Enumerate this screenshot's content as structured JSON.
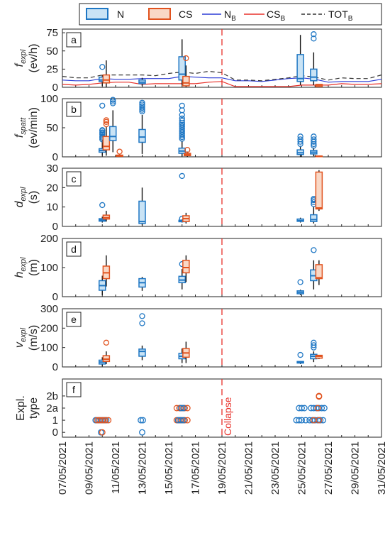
{
  "colors": {
    "N": "#1f77c4",
    "N_fill": "#c9e3f5",
    "CS": "#e1531f",
    "CS_fill": "#f9d8c6",
    "NB": "#2b3bd6",
    "CSB": "#e8312a",
    "TOT": "#333333",
    "collapse": "#e8312a"
  },
  "legend": {
    "N": "N",
    "CS": "CS",
    "NB": "N",
    "NB_sub": "B",
    "CSB": "CS",
    "CSB_sub": "B",
    "TOT": "TOT",
    "TOT_sub": "B"
  },
  "x_axis": {
    "start_day": 7,
    "end_day": 31,
    "tick_labels": [
      "07/05/2021",
      "09/05/2021",
      "11/05/2021",
      "13/05/2021",
      "15/05/2021",
      "17/05/2021",
      "19/05/2021",
      "21/05/2021",
      "23/05/2021",
      "25/05/2021",
      "27/05/2021",
      "29/05/2021",
      "31/05/2021"
    ]
  },
  "collapse": {
    "day": 19,
    "label": "Collapse"
  },
  "chart_data": [
    {
      "panel": "a",
      "type": "box",
      "ylabel": "f",
      "ylabel_sub": "expl",
      "unit": "(ev/h)",
      "ylim": [
        0,
        80
      ],
      "yticks": [
        "0",
        "25",
        "50",
        "75"
      ],
      "ytick_values": [
        0,
        25,
        50,
        75
      ],
      "boxes": [
        {
          "series": "N",
          "day": 10.0,
          "q1": 8,
          "med": 10,
          "q3": 14,
          "lo": 2,
          "hi": 17,
          "out": [
            28
          ]
        },
        {
          "series": "CS",
          "day": 10.3,
          "q1": 6,
          "med": 10,
          "q3": 17,
          "lo": 0,
          "hi": 37,
          "out": []
        },
        {
          "series": "N",
          "day": 13.0,
          "q1": 5,
          "med": 7,
          "q3": 10,
          "lo": 2,
          "hi": 13,
          "out": []
        },
        {
          "series": "N",
          "day": 16.0,
          "q1": 10,
          "med": 18,
          "q3": 42,
          "lo": 3,
          "hi": 66,
          "out": []
        },
        {
          "series": "CS",
          "day": 16.3,
          "q1": 2,
          "med": 6,
          "q3": 15,
          "lo": 0,
          "hi": 30,
          "out": [
            40
          ]
        },
        {
          "series": "N",
          "day": 24.9,
          "q1": 8,
          "med": 12,
          "q3": 45,
          "lo": 3,
          "hi": 72,
          "out": []
        },
        {
          "series": "N",
          "day": 25.9,
          "q1": 9,
          "med": 14,
          "q3": 25,
          "lo": 3,
          "hi": 48,
          "out": [
            67,
            73
          ]
        },
        {
          "series": "CS",
          "day": 26.3,
          "q1": 1,
          "med": 3,
          "q3": 4,
          "lo": 0,
          "hi": 4,
          "out": []
        }
      ],
      "lines": [
        {
          "series": "NB",
          "x": [
            7,
            8,
            9,
            10,
            11,
            12,
            13,
            14,
            15,
            16,
            17,
            18,
            19,
            20,
            21,
            22,
            23,
            24,
            25,
            26,
            27,
            28,
            29,
            30,
            31
          ],
          "y": [
            10,
            9,
            9,
            12,
            11,
            11,
            12,
            12,
            12,
            15,
            14,
            13,
            13,
            9,
            9,
            8,
            10,
            12,
            13,
            11,
            7,
            8,
            8,
            8,
            11
          ]
        },
        {
          "series": "CSB",
          "x": [
            7,
            8,
            9,
            10,
            11,
            12,
            13,
            14,
            15,
            16,
            17,
            18,
            19,
            20,
            21,
            22,
            23,
            24,
            25,
            26,
            27,
            28,
            29,
            30,
            31
          ],
          "y": [
            4,
            3,
            4,
            6,
            7,
            7,
            4,
            5,
            5,
            5,
            5,
            7,
            8,
            1,
            1,
            1,
            1,
            1,
            3,
            3,
            3,
            5,
            4,
            4,
            5
          ]
        },
        {
          "series": "TOT",
          "x": [
            7,
            8,
            9,
            10,
            11,
            12,
            13,
            14,
            15,
            16,
            17,
            18,
            19,
            20,
            21,
            22,
            23,
            24,
            25,
            26,
            27,
            28,
            29,
            30,
            31
          ],
          "y": [
            15,
            13,
            13,
            17,
            17,
            17,
            17,
            16,
            19,
            21,
            19,
            22,
            20,
            10,
            10,
            9,
            11,
            13,
            16,
            14,
            10,
            13,
            12,
            12,
            17
          ]
        }
      ]
    },
    {
      "panel": "b",
      "type": "box",
      "ylabel": "f",
      "ylabel_sub": "spatt",
      "unit": "(ev/min)",
      "ylim": [
        0,
        100
      ],
      "yticks": [
        "0",
        "50",
        "100"
      ],
      "ytick_values": [
        0,
        50,
        100
      ],
      "boxes": [
        {
          "series": "N",
          "day": 10.0,
          "q1": 8,
          "med": 11,
          "q3": 14,
          "lo": 2,
          "hi": 28,
          "out": [
            30,
            33,
            35,
            38,
            40,
            42,
            45,
            46,
            88
          ]
        },
        {
          "series": "CS",
          "day": 10.3,
          "q1": 12,
          "med": 18,
          "q3": 35,
          "lo": 2,
          "hi": 52,
          "out": [
            56,
            60,
            63
          ]
        },
        {
          "series": "N",
          "day": 10.8,
          "q1": 28,
          "med": 35,
          "q3": 52,
          "lo": 8,
          "hi": 80,
          "out": [
            92,
            95,
            98
          ]
        },
        {
          "series": "CS",
          "day": 11.3,
          "q1": 1,
          "med": 2,
          "q3": 3,
          "lo": 0,
          "hi": 4,
          "out": [
            9
          ]
        },
        {
          "series": "N",
          "day": 13.0,
          "q1": 25,
          "med": 34,
          "q3": 47,
          "lo": 5,
          "hi": 72,
          "out": [
            78,
            81,
            84,
            87,
            90,
            93
          ]
        },
        {
          "series": "N",
          "day": 16.0,
          "q1": 6,
          "med": 10,
          "q3": 15,
          "lo": 1,
          "hi": 28,
          "out": [
            31,
            34,
            37,
            40,
            43,
            46,
            49,
            52,
            55,
            58,
            62,
            66,
            72,
            80,
            88
          ]
        },
        {
          "series": "CS",
          "day": 16.4,
          "q1": 2,
          "med": 4,
          "q3": 6,
          "lo": 0,
          "hi": 9,
          "out": [
            12
          ]
        },
        {
          "series": "N",
          "day": 24.9,
          "q1": 4,
          "med": 7,
          "q3": 12,
          "lo": 0,
          "hi": 19,
          "out": [
            22,
            26,
            30,
            35
          ]
        },
        {
          "series": "N",
          "day": 25.9,
          "q1": 5,
          "med": 8,
          "q3": 11,
          "lo": 1,
          "hi": 16,
          "out": [
            19,
            22,
            26,
            30,
            35
          ]
        },
        {
          "series": "CS",
          "day": 26.3,
          "q1": 0.5,
          "med": 1,
          "q3": 1.5,
          "lo": 0,
          "hi": 2,
          "out": []
        }
      ]
    },
    {
      "panel": "c",
      "type": "box",
      "ylabel": "d",
      "ylabel_sub": "expl",
      "unit": "(s)",
      "ylim": [
        0,
        30
      ],
      "yticks": [
        "0",
        "10",
        "20",
        "30"
      ],
      "ytick_values": [
        0,
        10,
        20,
        30
      ],
      "boxes": [
        {
          "series": "N",
          "day": 10.0,
          "q1": 2.7,
          "med": 3.3,
          "q3": 4,
          "lo": 2,
          "hi": 5,
          "out": [
            11
          ]
        },
        {
          "series": "CS",
          "day": 10.3,
          "q1": 3.8,
          "med": 4.5,
          "q3": 5.8,
          "lo": 2.5,
          "hi": 8,
          "out": []
        },
        {
          "series": "N",
          "day": 13.0,
          "q1": 1.5,
          "med": 2.5,
          "q3": 13,
          "lo": 0.5,
          "hi": 20,
          "out": []
        },
        {
          "series": "N",
          "day": 16.0,
          "q1": 2.4,
          "med": 2.8,
          "q3": 3.2,
          "lo": 2,
          "hi": 3.6,
          "out": [
            4,
            26
          ]
        },
        {
          "series": "CS",
          "day": 16.3,
          "q1": 2.5,
          "med": 4,
          "q3": 5.5,
          "lo": 1.5,
          "hi": 7,
          "out": []
        },
        {
          "series": "N",
          "day": 24.9,
          "q1": 2.6,
          "med": 3,
          "q3": 3.8,
          "lo": 2,
          "hi": 4.5,
          "out": []
        },
        {
          "series": "N",
          "day": 25.9,
          "q1": 2.5,
          "med": 3.5,
          "q3": 6,
          "lo": 1.5,
          "hi": 10,
          "out": [
            11.5,
            12.5,
            13.5,
            14.2
          ]
        },
        {
          "series": "CS",
          "day": 26.3,
          "q1": 9,
          "med": 9.5,
          "q3": 28,
          "lo": 8,
          "hi": 29,
          "out": []
        }
      ]
    },
    {
      "panel": "d",
      "type": "box",
      "ylabel": "h",
      "ylabel_sub": "expl",
      "unit": "(m)",
      "ylim": [
        0,
        200
      ],
      "yticks": [
        "0",
        "100",
        "200"
      ],
      "ytick_values": [
        0,
        100,
        200
      ],
      "boxes": [
        {
          "series": "N",
          "day": 10.0,
          "q1": 22,
          "med": 38,
          "q3": 55,
          "lo": 5,
          "hi": 72,
          "out": []
        },
        {
          "series": "CS",
          "day": 10.3,
          "q1": 62,
          "med": 82,
          "q3": 105,
          "lo": 35,
          "hi": 142,
          "out": []
        },
        {
          "series": "N",
          "day": 13.0,
          "q1": 33,
          "med": 48,
          "q3": 62,
          "lo": 20,
          "hi": 68,
          "out": []
        },
        {
          "series": "N",
          "day": 16.0,
          "q1": 48,
          "med": 57,
          "q3": 70,
          "lo": 25,
          "hi": 95,
          "out": [
            112
          ]
        },
        {
          "series": "CS",
          "day": 16.3,
          "q1": 82,
          "med": 100,
          "q3": 125,
          "lo": 50,
          "hi": 142,
          "out": []
        },
        {
          "series": "N",
          "day": 24.9,
          "q1": 10,
          "med": 15,
          "q3": 20,
          "lo": 5,
          "hi": 24,
          "out": [
            50
          ]
        },
        {
          "series": "N",
          "day": 25.9,
          "q1": 55,
          "med": 72,
          "q3": 92,
          "lo": 25,
          "hi": 125,
          "out": [
            160
          ]
        },
        {
          "series": "CS",
          "day": 26.3,
          "q1": 62,
          "med": 65,
          "q3": 110,
          "lo": 40,
          "hi": 125,
          "out": []
        }
      ]
    },
    {
      "panel": "e",
      "type": "box",
      "ylabel": "v",
      "ylabel_sub": "expl",
      "unit": "(m/s)",
      "ylim": [
        0,
        300
      ],
      "yticks": [
        "0",
        "100",
        "200",
        "300"
      ],
      "ytick_values": [
        0,
        100,
        200,
        300
      ],
      "boxes": [
        {
          "series": "N",
          "day": 10.0,
          "q1": 15,
          "med": 25,
          "q3": 35,
          "lo": 5,
          "hi": 50,
          "out": []
        },
        {
          "series": "CS",
          "day": 10.3,
          "q1": 28,
          "med": 40,
          "q3": 58,
          "lo": 15,
          "hi": 80,
          "out": [
            125
          ]
        },
        {
          "series": "N",
          "day": 13.0,
          "q1": 55,
          "med": 80,
          "q3": 92,
          "lo": 35,
          "hi": 110,
          "out": [
            225,
            262
          ]
        },
        {
          "series": "N",
          "day": 16.0,
          "q1": 42,
          "med": 55,
          "q3": 70,
          "lo": 20,
          "hi": 95,
          "out": []
        },
        {
          "series": "CS",
          "day": 16.3,
          "q1": 50,
          "med": 72,
          "q3": 95,
          "lo": 20,
          "hi": 130,
          "out": []
        },
        {
          "series": "N",
          "day": 24.9,
          "q1": 20,
          "med": 25,
          "q3": 28,
          "lo": 15,
          "hi": 30,
          "out": [
            62
          ]
        },
        {
          "series": "N",
          "day": 25.9,
          "q1": 42,
          "med": 55,
          "q3": 65,
          "lo": 25,
          "hi": 80,
          "out": [
            100,
            112,
            125
          ]
        },
        {
          "series": "CS",
          "day": 26.3,
          "q1": 45,
          "med": 55,
          "q3": 60,
          "lo": 40,
          "hi": 62,
          "out": []
        }
      ]
    },
    {
      "panel": "f",
      "type": "scatter",
      "ylabel": "Expl.",
      "ylabel2": "type",
      "ylim": [
        -0.4,
        4.4
      ],
      "yticks": [
        "0",
        "1",
        "2a",
        "2b"
      ],
      "ytick_values": [
        0,
        1,
        2,
        3
      ],
      "points": [
        {
          "series": "N",
          "day": 9.5,
          "y": 1
        },
        {
          "series": "N",
          "day": 9.7,
          "y": 1
        },
        {
          "series": "N",
          "day": 9.9,
          "y": 1
        },
        {
          "series": "N",
          "day": 10.1,
          "y": 1
        },
        {
          "series": "N",
          "day": 10.3,
          "y": 1
        },
        {
          "series": "CS",
          "day": 9.6,
          "y": 1
        },
        {
          "series": "CS",
          "day": 9.8,
          "y": 1
        },
        {
          "series": "CS",
          "day": 10.0,
          "y": 1
        },
        {
          "series": "CS",
          "day": 10.2,
          "y": 1
        },
        {
          "series": "CS",
          "day": 10.45,
          "y": 1
        },
        {
          "series": "N",
          "day": 9.9,
          "y": 0
        },
        {
          "series": "CS",
          "day": 10.0,
          "y": 0
        },
        {
          "series": "N",
          "day": 12.9,
          "y": 1
        },
        {
          "series": "N",
          "day": 13.05,
          "y": 1
        },
        {
          "series": "N",
          "day": 13.0,
          "y": 0
        },
        {
          "series": "CS",
          "day": 15.6,
          "y": 1
        },
        {
          "series": "CS",
          "day": 15.8,
          "y": 1
        },
        {
          "series": "CS",
          "day": 16.0,
          "y": 1
        },
        {
          "series": "CS",
          "day": 16.2,
          "y": 1
        },
        {
          "series": "CS",
          "day": 16.4,
          "y": 1
        },
        {
          "series": "N",
          "day": 15.7,
          "y": 1
        },
        {
          "series": "N",
          "day": 15.9,
          "y": 1
        },
        {
          "series": "N",
          "day": 16.1,
          "y": 1
        },
        {
          "series": "CS",
          "day": 15.6,
          "y": 2
        },
        {
          "series": "CS",
          "day": 15.8,
          "y": 2
        },
        {
          "series": "CS",
          "day": 16.0,
          "y": 2
        },
        {
          "series": "CS",
          "day": 16.2,
          "y": 2
        },
        {
          "series": "CS",
          "day": 16.4,
          "y": 2
        },
        {
          "series": "N",
          "day": 15.9,
          "y": 2
        },
        {
          "series": "N",
          "day": 16.1,
          "y": 2
        },
        {
          "series": "N",
          "day": 24.6,
          "y": 1
        },
        {
          "series": "N",
          "day": 24.8,
          "y": 1
        },
        {
          "series": "N",
          "day": 25.0,
          "y": 1
        },
        {
          "series": "N",
          "day": 25.3,
          "y": 1
        },
        {
          "series": "N",
          "day": 25.6,
          "y": 1
        },
        {
          "series": "N",
          "day": 25.8,
          "y": 1
        },
        {
          "series": "N",
          "day": 26.0,
          "y": 1
        },
        {
          "series": "N",
          "day": 26.2,
          "y": 1
        },
        {
          "series": "N",
          "day": 26.4,
          "y": 1
        },
        {
          "series": "N",
          "day": 26.6,
          "y": 1
        },
        {
          "series": "CS",
          "day": 25.9,
          "y": 1
        },
        {
          "series": "CS",
          "day": 26.3,
          "y": 1
        },
        {
          "series": "N",
          "day": 24.8,
          "y": 2
        },
        {
          "series": "N",
          "day": 25.0,
          "y": 2
        },
        {
          "series": "N",
          "day": 25.2,
          "y": 2
        },
        {
          "series": "N",
          "day": 25.7,
          "y": 2
        },
        {
          "series": "N",
          "day": 25.9,
          "y": 2
        },
        {
          "series": "N",
          "day": 26.1,
          "y": 2
        },
        {
          "series": "N",
          "day": 26.3,
          "y": 2
        },
        {
          "series": "N",
          "day": 26.5,
          "y": 2
        },
        {
          "series": "N",
          "day": 26.7,
          "y": 2
        },
        {
          "series": "CS",
          "day": 26.2,
          "y": 2
        },
        {
          "series": "CS",
          "day": 26.3,
          "y": 3
        },
        {
          "series": "CS",
          "day": 26.3,
          "y": 2.95
        }
      ]
    }
  ]
}
